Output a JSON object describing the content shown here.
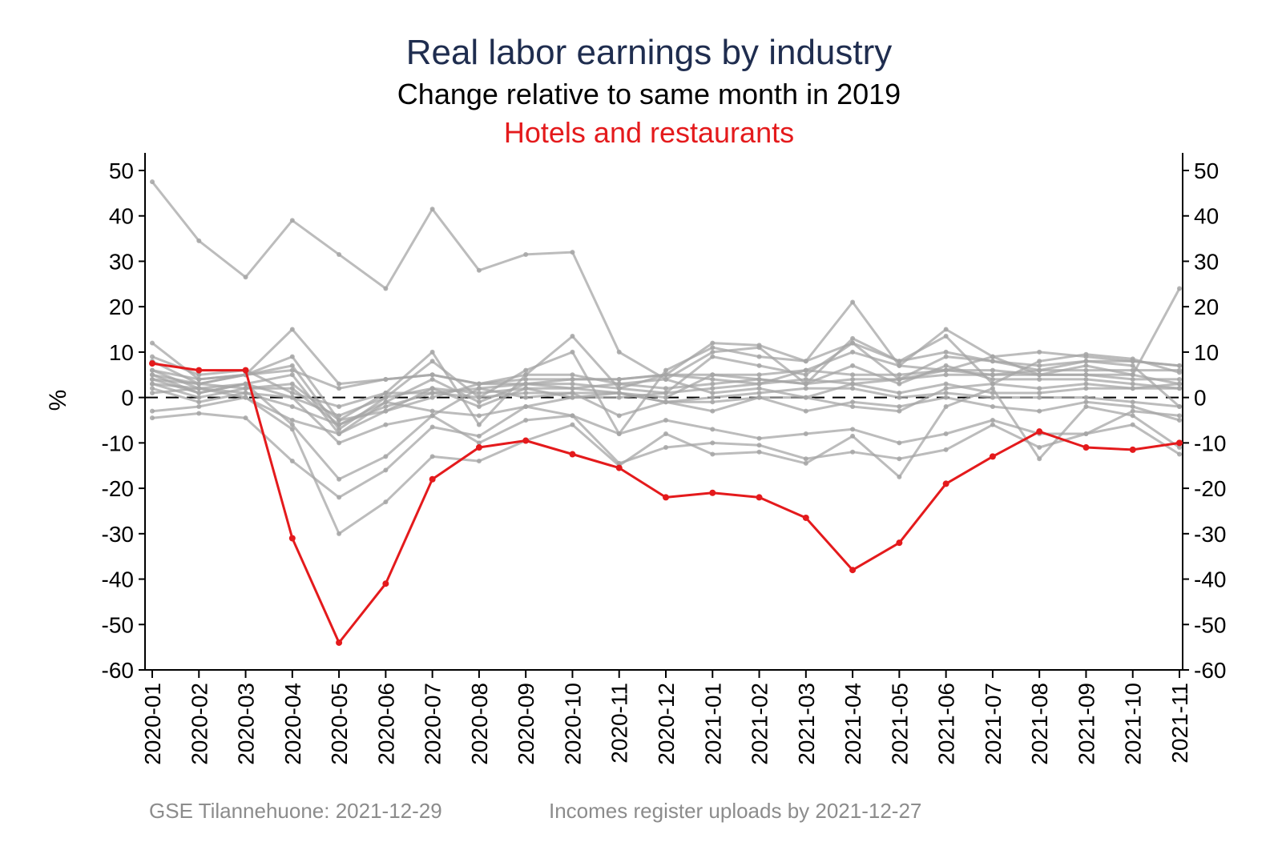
{
  "chart_data": {
    "type": "line",
    "title": "Real labor earnings by industry",
    "subtitle": "Change relative to same month in 2019",
    "highlight_label": "Hotels and restaurants",
    "ylabel": "%",
    "ylim": [
      -60,
      50
    ],
    "yticks": [
      50,
      40,
      30,
      20,
      10,
      0,
      -10,
      -20,
      -30,
      -40,
      -50,
      -60
    ],
    "categories": [
      "2020-01",
      "2020-02",
      "2020-03",
      "2020-04",
      "2020-05",
      "2020-06",
      "2020-07",
      "2020-08",
      "2020-09",
      "2020-10",
      "2020-11",
      "2020-12",
      "2021-01",
      "2021-02",
      "2021-03",
      "2021-04",
      "2021-05",
      "2021-06",
      "2021-07",
      "2021-08",
      "2021-09",
      "2021-10",
      "2021-11"
    ],
    "reference_line": 0,
    "grid": false,
    "colors": {
      "highlight": "#e41a1c",
      "other": "#a6a6a6",
      "title": "#1f2d4f",
      "note": "#8c8c8c"
    },
    "highlight_series": {
      "name": "Hotels and restaurants",
      "values": [
        7.5,
        6,
        6,
        -31,
        -54,
        -41,
        -18,
        -11,
        -9.5,
        -12.5,
        -15.5,
        -22,
        -21,
        -22,
        -26.5,
        -38,
        -32,
        -19,
        -13,
        -7.5,
        -11,
        -11.5,
        -10
      ]
    },
    "series": [
      {
        "values": [
          47.5,
          34.5,
          26.5,
          39,
          31.5,
          24,
          41.5,
          28,
          31.5,
          32,
          10,
          4,
          1,
          2,
          0,
          3,
          1,
          3,
          1,
          1,
          2,
          2,
          2
        ]
      },
      {
        "values": [
          12,
          4,
          5,
          15,
          3,
          4,
          5,
          3,
          3,
          4,
          4,
          5,
          5,
          5,
          6,
          5,
          5,
          6,
          6,
          5,
          5,
          5,
          24
        ]
      },
      {
        "values": [
          5,
          3,
          5,
          9,
          -5,
          1,
          10,
          -6,
          5,
          13.5,
          2,
          5,
          12,
          11.5,
          8,
          21,
          7,
          15,
          9,
          10,
          9,
          8,
          7
        ]
      },
      {
        "values": [
          4,
          1,
          3,
          5,
          -8,
          -1,
          4,
          -1,
          3,
          3,
          2,
          1,
          9,
          7,
          5,
          12,
          4,
          9,
          8,
          7,
          8,
          8,
          7
        ]
      },
      {
        "values": [
          3,
          0,
          2,
          3,
          -5,
          -3,
          2,
          -2,
          2,
          2,
          1,
          0,
          5,
          4,
          3,
          7,
          3,
          7,
          4,
          4,
          4,
          3,
          2
        ]
      },
      {
        "values": [
          2,
          -1,
          1,
          0,
          -10,
          -6,
          -4,
          -10,
          -5,
          -4,
          -8,
          -5,
          -7,
          -9,
          -8,
          -7,
          -10,
          -8,
          -5,
          -8,
          -8,
          -6,
          -12.5
        ]
      },
      {
        "values": [
          -4.5,
          -3.5,
          -4.5,
          -14,
          -22,
          -16,
          -6.5,
          -8.5,
          -2,
          -4,
          -14.5,
          -11,
          -10,
          -10.5,
          -13.5,
          -12,
          -13.5,
          -11.5,
          -6,
          -11,
          -8,
          -3,
          -4
        ]
      },
      {
        "values": [
          1,
          2,
          0,
          -7,
          -30,
          -23,
          -13,
          -14,
          -9.5,
          -6,
          -15,
          -8,
          -12.5,
          -12,
          -14.5,
          -8.5,
          -17.5,
          -2,
          2,
          -13.5,
          -2,
          -4,
          -11
        ]
      },
      {
        "values": [
          6,
          2,
          3,
          -6,
          -18,
          -13,
          -4,
          2,
          0,
          1,
          -4,
          -1,
          -3,
          0,
          0,
          -2,
          -3,
          2,
          3,
          2,
          3,
          2,
          3
        ]
      },
      {
        "values": [
          9,
          5,
          6,
          1,
          -2,
          1,
          1,
          2,
          3,
          2,
          3,
          2,
          3,
          4,
          3,
          4,
          4,
          5,
          5,
          6,
          6,
          6,
          6
        ]
      },
      {
        "values": [
          -3,
          -2,
          0,
          -5,
          -8,
          -3,
          0,
          3,
          5,
          5,
          3,
          4,
          10,
          11,
          3,
          13,
          8,
          13.5,
          3,
          8,
          9.5,
          8.5,
          5.5
        ]
      },
      {
        "values": [
          5,
          1,
          3,
          0,
          -4,
          0,
          2,
          1,
          2,
          0,
          0,
          1,
          2,
          3,
          4,
          3,
          4,
          6,
          5,
          5,
          5,
          4,
          4
        ]
      },
      {
        "values": [
          3,
          2,
          1,
          -2,
          -6,
          -2,
          1,
          0,
          1,
          1,
          1,
          -1,
          0,
          1,
          2,
          2,
          0,
          1,
          0,
          0,
          0,
          -1,
          -2
        ]
      },
      {
        "values": [
          8,
          3,
          5,
          7,
          -7,
          0,
          8,
          0,
          6,
          10,
          -8,
          6,
          11,
          9,
          8,
          12,
          8,
          10,
          8,
          6,
          8,
          7,
          -2
        ]
      },
      {
        "values": [
          6,
          4,
          5,
          6,
          2,
          4,
          5,
          3,
          4,
          4,
          4,
          5,
          4,
          3,
          6,
          10,
          7,
          6,
          9,
          5,
          7,
          5,
          3
        ]
      },
      {
        "values": [
          4,
          3,
          2,
          2,
          -6,
          -1,
          -3,
          -4,
          -2,
          0,
          1,
          -1,
          -1,
          0,
          -3,
          -1,
          -2,
          0,
          -2,
          -3,
          -1,
          -2,
          -5
        ]
      }
    ]
  },
  "notes": {
    "source": "GSE Tilannehuone: 2021-12-29",
    "uploads": "Incomes register uploads by 2021-12-27"
  }
}
